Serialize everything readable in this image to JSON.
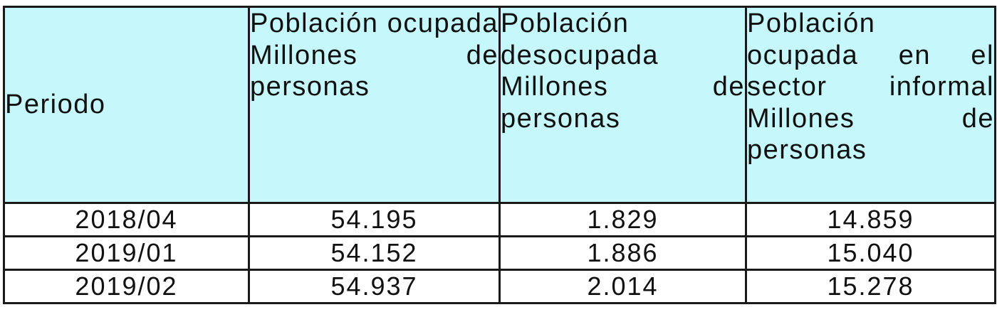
{
  "table": {
    "headers": [
      "Periodo",
      "Población ocupada Millones de personas",
      "Población desocupada Millones de personas",
      "Población ocupada en el sector informal Millones de personas"
    ],
    "rows": [
      [
        "2018/04",
        "54.195",
        "1.829",
        "14.859"
      ],
      [
        "2019/01",
        "54.152",
        "1.886",
        "15.040"
      ],
      [
        "2019/02",
        "54.937",
        "2.014",
        "15.278"
      ]
    ]
  },
  "colors": {
    "header_background": "#c6f8fb",
    "border": "#1a1a1a"
  }
}
